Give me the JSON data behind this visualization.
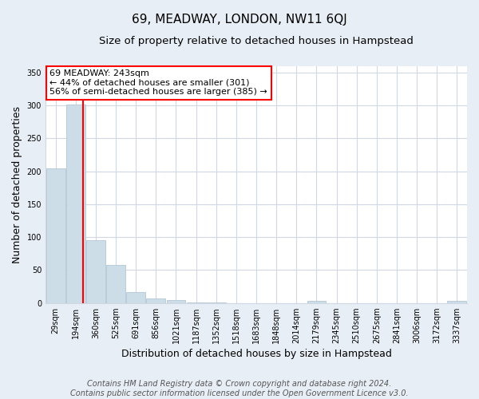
{
  "title": "69, MEADWAY, LONDON, NW11 6QJ",
  "subtitle": "Size of property relative to detached houses in Hampstead",
  "xlabel": "Distribution of detached houses by size in Hampstead",
  "ylabel": "Number of detached properties",
  "categories": [
    "29sqm",
    "194sqm",
    "360sqm",
    "525sqm",
    "691sqm",
    "856sqm",
    "1021sqm",
    "1187sqm",
    "1352sqm",
    "1518sqm",
    "1683sqm",
    "1848sqm",
    "2014sqm",
    "2179sqm",
    "2345sqm",
    "2510sqm",
    "2675sqm",
    "2841sqm",
    "3006sqm",
    "3172sqm",
    "3337sqm"
  ],
  "values": [
    204,
    301,
    95,
    58,
    16,
    7,
    4,
    1,
    1,
    0,
    0,
    0,
    0,
    3,
    0,
    0,
    0,
    0,
    0,
    0,
    3
  ],
  "bar_color": "#ccdde8",
  "bar_edge_color": "#aabfd0",
  "red_line_x": 1.38,
  "annotation_text": "69 MEADWAY: 243sqm\n← 44% of detached houses are smaller (301)\n56% of semi-detached houses are larger (385) →",
  "ylim": [
    0,
    360
  ],
  "yticks": [
    0,
    50,
    100,
    150,
    200,
    250,
    300,
    350
  ],
  "footer": "Contains HM Land Registry data © Crown copyright and database right 2024.\nContains public sector information licensed under the Open Government Licence v3.0.",
  "bg_color": "#e8eef5",
  "plot_bg_color": "#ffffff",
  "grid_color": "#d0d8e4",
  "title_fontsize": 11,
  "subtitle_fontsize": 9.5,
  "axis_label_fontsize": 9,
  "tick_fontsize": 7,
  "annot_fontsize": 8,
  "footer_fontsize": 7
}
